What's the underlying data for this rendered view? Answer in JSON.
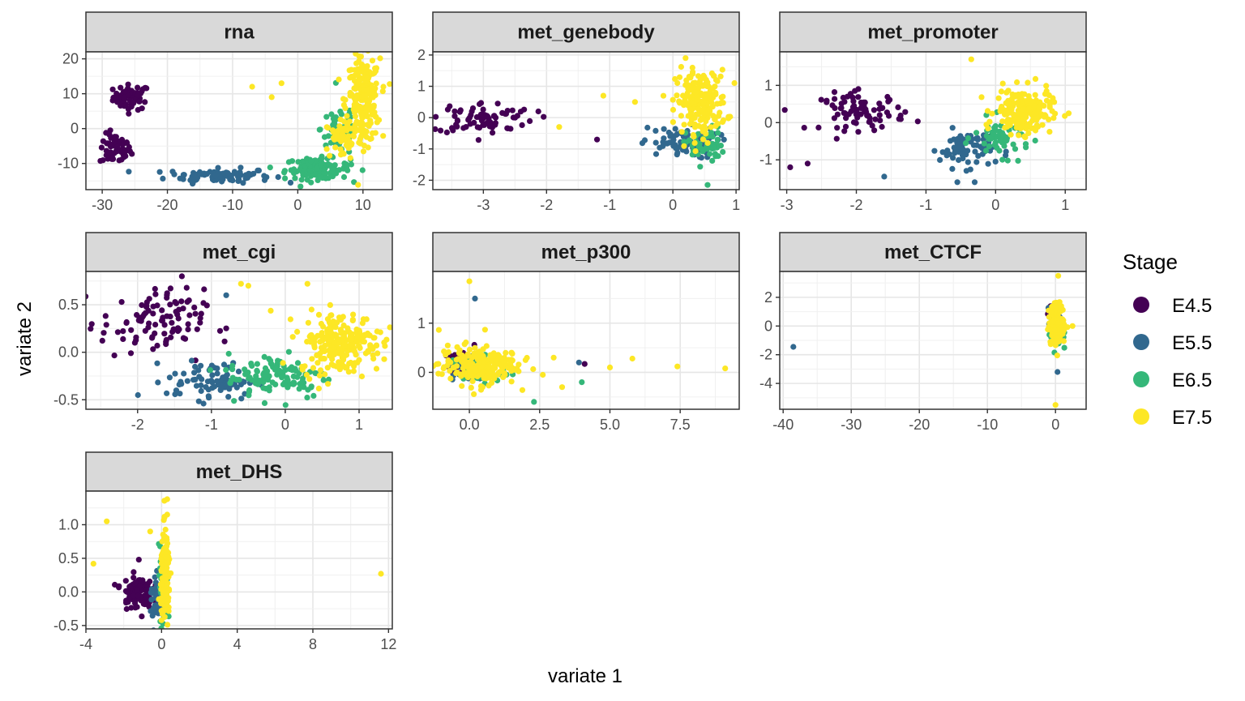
{
  "chart_data": {
    "type": "scatter",
    "xlabel": "variate 1",
    "ylabel": "variate 2",
    "legend": {
      "title": "Stage",
      "position": "right",
      "entries": [
        {
          "label": "E4.5",
          "color": "#440154"
        },
        {
          "label": "E5.5",
          "color": "#31688e"
        },
        {
          "label": "E6.5",
          "color": "#35b779"
        },
        {
          "label": "E7.5",
          "color": "#fde725"
        }
      ]
    },
    "panels": [
      {
        "title": "rna",
        "xlim": [
          -32.5,
          14.5
        ],
        "ylim": [
          -17.5,
          22
        ],
        "xticks": [
          -30,
          -20,
          -10,
          0,
          10
        ],
        "xtick_labels": [
          "-30",
          "-20",
          "-10",
          "0",
          "10"
        ],
        "yticks": [
          -10,
          0,
          10,
          20
        ],
        "ytick_labels": [
          "-10",
          "0",
          "10",
          "20"
        ],
        "clusters": [
          {
            "stage": "E4.5",
            "cx": -25.5,
            "cy": 9,
            "sx": 1.4,
            "sy": 1.8,
            "n": 60
          },
          {
            "stage": "E4.5",
            "cx": -28,
            "cy": -6,
            "sx": 1.2,
            "sy": 2.2,
            "n": 60
          },
          {
            "stage": "E5.5",
            "cx": -12,
            "cy": -13.5,
            "sx": 4,
            "sy": 1,
            "n": 90
          },
          {
            "stage": "E6.5",
            "cx": 3,
            "cy": -11.5,
            "sx": 2.5,
            "sy": 1.5,
            "n": 120
          },
          {
            "stage": "E6.5",
            "cx": 6.5,
            "cy": 0,
            "sx": 1.5,
            "sy": 4,
            "n": 50
          },
          {
            "stage": "E7.5",
            "cx": 10,
            "cy": 8,
            "sx": 1.3,
            "sy": 6,
            "n": 220
          },
          {
            "stage": "E7.5",
            "cx": 7,
            "cy": -3,
            "sx": 1.5,
            "sy": 3,
            "n": 50
          }
        ],
        "points": [
          {
            "x": -7,
            "y": 12,
            "stage": "E7.5"
          },
          {
            "x": -4,
            "y": 9,
            "stage": "E7.5"
          },
          {
            "x": -2.5,
            "y": 13,
            "stage": "E7.5"
          }
        ]
      },
      {
        "title": "met_genebody",
        "xlim": [
          -3.8,
          1.05
        ],
        "ylim": [
          -2.3,
          2.1
        ],
        "xticks": [
          -3,
          -2,
          -1,
          0,
          1
        ],
        "xtick_labels": [
          "-3",
          "-2",
          "-1",
          "0",
          "1"
        ],
        "yticks": [
          -2,
          -1,
          0,
          1,
          2
        ],
        "ytick_labels": [
          "-2",
          "-1",
          "0",
          "1",
          "2"
        ],
        "clusters": [
          {
            "stage": "E4.5",
            "cx": -3,
            "cy": 0,
            "sx": 0.4,
            "sy": 0.25,
            "n": 80
          },
          {
            "stage": "E5.5",
            "cx": 0.1,
            "cy": -0.8,
            "sx": 0.3,
            "sy": 0.25,
            "n": 80
          },
          {
            "stage": "E6.5",
            "cx": 0.5,
            "cy": -0.9,
            "sx": 0.15,
            "sy": 0.3,
            "n": 50
          },
          {
            "stage": "E7.5",
            "cx": 0.45,
            "cy": 0.5,
            "sx": 0.2,
            "sy": 0.5,
            "n": 200
          }
        ],
        "points": [
          {
            "x": -1.2,
            "y": -0.7,
            "stage": "E4.5"
          },
          {
            "x": -1.8,
            "y": -0.3,
            "stage": "E7.5"
          },
          {
            "x": -1.1,
            "y": 0.7,
            "stage": "E7.5"
          },
          {
            "x": 0.55,
            "y": -2.15,
            "stage": "E6.5"
          },
          {
            "x": -0.6,
            "y": 0.5,
            "stage": "E7.5"
          },
          {
            "x": 0.2,
            "y": 1.9,
            "stage": "E7.5"
          }
        ]
      },
      {
        "title": "met_promoter",
        "xlim": [
          -3.1,
          1.3
        ],
        "ylim": [
          -1.8,
          1.9
        ],
        "xticks": [
          -3,
          -2,
          -1,
          0,
          1
        ],
        "xtick_labels": [
          "-3",
          "-2",
          "-1",
          "0",
          "1"
        ],
        "yticks": [
          -1,
          0,
          1
        ],
        "ytick_labels": [
          "-1",
          "0",
          "1"
        ],
        "clusters": [
          {
            "stage": "E4.5",
            "cx": -1.9,
            "cy": 0.3,
            "sx": 0.3,
            "sy": 0.25,
            "n": 80
          },
          {
            "stage": "E5.5",
            "cx": -0.4,
            "cy": -0.7,
            "sx": 0.2,
            "sy": 0.25,
            "n": 80
          },
          {
            "stage": "E6.5",
            "cx": 0.1,
            "cy": -0.4,
            "sx": 0.2,
            "sy": 0.25,
            "n": 60
          },
          {
            "stage": "E7.5",
            "cx": 0.4,
            "cy": 0.3,
            "sx": 0.2,
            "sy": 0.3,
            "n": 200
          }
        ],
        "points": [
          {
            "x": -2.95,
            "y": -1.2,
            "stage": "E4.5"
          },
          {
            "x": -2.7,
            "y": -1.1,
            "stage": "E4.5"
          },
          {
            "x": -1.6,
            "y": -1.45,
            "stage": "E5.5"
          },
          {
            "x": -0.35,
            "y": 1.7,
            "stage": "E7.5"
          },
          {
            "x": -0.55,
            "y": -1.6,
            "stage": "E5.5"
          },
          {
            "x": -0.3,
            "y": -1.6,
            "stage": "E5.5"
          },
          {
            "x": 1.05,
            "y": 0.25,
            "stage": "E7.5"
          }
        ]
      },
      {
        "title": "met_cgi",
        "xlim": [
          -2.7,
          1.45
        ],
        "ylim": [
          -0.6,
          0.85
        ],
        "xticks": [
          -2,
          -1,
          0,
          1
        ],
        "xtick_labels": [
          "-2",
          "-1",
          "0",
          "1"
        ],
        "yticks": [
          -0.5,
          0,
          0.5
        ],
        "ytick_labels": [
          "-0.5",
          "0.0",
          "0.5"
        ],
        "clusters": [
          {
            "stage": "E4.5",
            "cx": -1.8,
            "cy": 0.3,
            "sx": 0.35,
            "sy": 0.18,
            "n": 100
          },
          {
            "stage": "E5.5",
            "cx": -1,
            "cy": -0.3,
            "sx": 0.3,
            "sy": 0.1,
            "n": 80
          },
          {
            "stage": "E6.5",
            "cx": -0.1,
            "cy": -0.25,
            "sx": 0.35,
            "sy": 0.12,
            "n": 110
          },
          {
            "stage": "E7.5",
            "cx": 0.75,
            "cy": 0.1,
            "sx": 0.28,
            "sy": 0.16,
            "n": 220
          }
        ],
        "points": [
          {
            "x": -0.6,
            "y": 0.72,
            "stage": "E7.5"
          },
          {
            "x": -0.5,
            "y": 0.7,
            "stage": "E7.5"
          },
          {
            "x": -1.4,
            "y": 0.8,
            "stage": "E4.5"
          },
          {
            "x": -0.8,
            "y": 0.6,
            "stage": "E5.5"
          },
          {
            "x": 0.3,
            "y": 0.72,
            "stage": "E7.5"
          }
        ]
      },
      {
        "title": "met_p300",
        "xlim": [
          -1.3,
          9.6
        ],
        "ylim": [
          -0.75,
          2.05
        ],
        "xticks": [
          0,
          2.5,
          5,
          7.5
        ],
        "xtick_labels": [
          "0.0",
          "2.5",
          "5.0",
          "7.5"
        ],
        "yticks": [
          0,
          1
        ],
        "ytick_labels": [
          "0",
          "1"
        ],
        "clusters": [
          {
            "stage": "E4.5",
            "cx": -0.3,
            "cy": 0.15,
            "sx": 0.3,
            "sy": 0.15,
            "n": 30
          },
          {
            "stage": "E5.5",
            "cx": 0,
            "cy": 0.1,
            "sx": 0.3,
            "sy": 0.15,
            "n": 30
          },
          {
            "stage": "E6.5",
            "cx": 0.3,
            "cy": 0.05,
            "sx": 0.5,
            "sy": 0.15,
            "n": 40
          },
          {
            "stage": "E7.5",
            "cx": 0.3,
            "cy": 0.15,
            "sx": 0.7,
            "sy": 0.2,
            "n": 200
          }
        ],
        "points": [
          {
            "x": 0,
            "y": 1.85,
            "stage": "E7.5"
          },
          {
            "x": 0.2,
            "y": 1.5,
            "stage": "E5.5"
          },
          {
            "x": 9.1,
            "y": 0.08,
            "stage": "E7.5"
          },
          {
            "x": 7.4,
            "y": 0.12,
            "stage": "E7.5"
          },
          {
            "x": 5.8,
            "y": 0.28,
            "stage": "E7.5"
          },
          {
            "x": 5,
            "y": 0.1,
            "stage": "E7.5"
          },
          {
            "x": 4.1,
            "y": 0.17,
            "stage": "E4.5"
          },
          {
            "x": 3.9,
            "y": 0.2,
            "stage": "E5.5"
          },
          {
            "x": 4,
            "y": -0.2,
            "stage": "E6.5"
          },
          {
            "x": 2.3,
            "y": -0.6,
            "stage": "E6.5"
          },
          {
            "x": 3.3,
            "y": -0.3,
            "stage": "E7.5"
          },
          {
            "x": 3,
            "y": 0.3,
            "stage": "E7.5"
          },
          {
            "x": 1.5,
            "y": 0.4,
            "stage": "E7.5"
          },
          {
            "x": 2,
            "y": 0.25,
            "stage": "E7.5"
          }
        ]
      },
      {
        "title": "met_CTCF",
        "xlim": [
          -40.5,
          4.5
        ],
        "ylim": [
          -5.8,
          3.8
        ],
        "xticks": [
          -40,
          -30,
          -20,
          -10,
          0
        ],
        "xtick_labels": [
          "-40",
          "-30",
          "-20",
          "-10",
          "0"
        ],
        "yticks": [
          -4,
          -2,
          0,
          2
        ],
        "ytick_labels": [
          "-4",
          "-2",
          "0",
          "2"
        ],
        "clusters": [
          {
            "stage": "E4.5",
            "cx": -0.2,
            "cy": 0.5,
            "sx": 0.5,
            "sy": 0.5,
            "n": 20
          },
          {
            "stage": "E5.5",
            "cx": 0,
            "cy": 0,
            "sx": 0.5,
            "sy": 0.6,
            "n": 30
          },
          {
            "stage": "E6.5",
            "cx": 0.1,
            "cy": -0.5,
            "sx": 0.5,
            "sy": 0.6,
            "n": 40
          },
          {
            "stage": "E7.5",
            "cx": 0.2,
            "cy": 0.1,
            "sx": 0.6,
            "sy": 0.7,
            "n": 150
          }
        ],
        "points": [
          {
            "x": -38.5,
            "y": -1.45,
            "stage": "E5.5"
          },
          {
            "x": 0.4,
            "y": 3.5,
            "stage": "E7.5"
          },
          {
            "x": 0,
            "y": -5.5,
            "stage": "E7.5"
          },
          {
            "x": 0.3,
            "y": -3.2,
            "stage": "E5.5"
          },
          {
            "x": 2.5,
            "y": 0,
            "stage": "E7.5"
          }
        ]
      },
      {
        "title": "met_DHS",
        "xlim": [
          -4,
          12.2
        ],
        "ylim": [
          -0.55,
          1.5
        ],
        "xticks": [
          -4,
          0,
          4,
          8,
          12
        ],
        "xtick_labels": [
          "-4",
          "0",
          "4",
          "8",
          "12"
        ],
        "yticks": [
          -0.5,
          0,
          0.5,
          1
        ],
        "ytick_labels": [
          "-0.5",
          "0.0",
          "0.5",
          "1.0"
        ],
        "clusters": [
          {
            "stage": "E4.5",
            "cx": -1.3,
            "cy": 0,
            "sx": 0.4,
            "sy": 0.12,
            "n": 110
          },
          {
            "stage": "E5.5",
            "cx": -0.2,
            "cy": -0.1,
            "sx": 0.2,
            "sy": 0.2,
            "n": 40
          },
          {
            "stage": "E6.5",
            "cx": 0.1,
            "cy": 0.05,
            "sx": 0.12,
            "sy": 0.3,
            "n": 50
          },
          {
            "stage": "E7.5",
            "cx": 0.2,
            "cy": 0.2,
            "sx": 0.12,
            "sy": 0.35,
            "n": 160
          }
        ],
        "points": [
          {
            "x": -3.6,
            "y": 0.42,
            "stage": "E7.5"
          },
          {
            "x": -2.9,
            "y": 1.05,
            "stage": "E7.5"
          },
          {
            "x": 11.6,
            "y": 0.27,
            "stage": "E7.5"
          },
          {
            "x": 0.3,
            "y": 1.38,
            "stage": "E7.5"
          },
          {
            "x": -1.2,
            "y": 0.48,
            "stage": "E4.5"
          },
          {
            "x": -0.6,
            "y": 0.9,
            "stage": "E7.5"
          }
        ]
      }
    ]
  }
}
